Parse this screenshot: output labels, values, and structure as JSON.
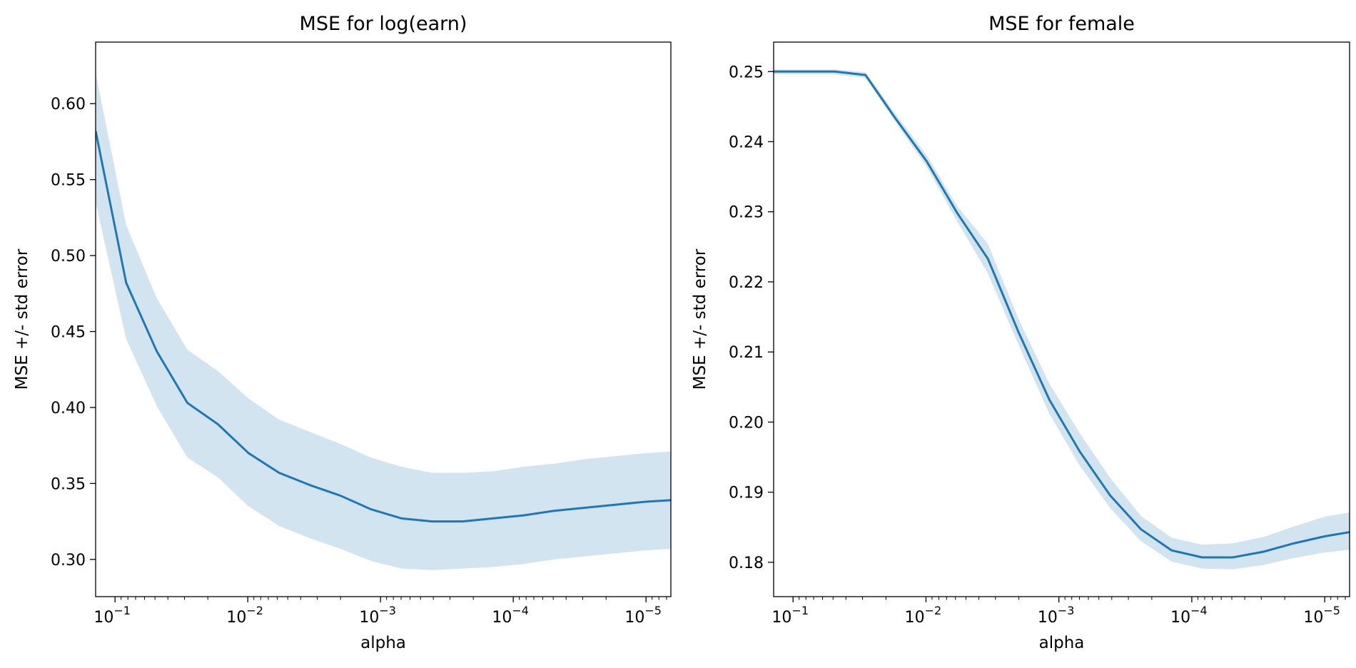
{
  "chart_data": [
    {
      "type": "line",
      "title": "MSE for log(earn)",
      "xlabel": "alpha",
      "ylabel": "MSE +/- std error",
      "x_scale": "log",
      "x_reversed": true,
      "xlim": [
        0.14,
        6.5e-06
      ],
      "ylim": [
        0.2755,
        0.6405
      ],
      "xticks": [
        {
          "value": 0.1,
          "base": "10",
          "exp": "−1"
        },
        {
          "value": 0.01,
          "base": "10",
          "exp": "−2"
        },
        {
          "value": 0.001,
          "base": "10",
          "exp": "−3"
        },
        {
          "value": 0.0001,
          "base": "10",
          "exp": "−4"
        },
        {
          "value": 1e-05,
          "base": "10",
          "exp": "−5"
        }
      ],
      "yticks": [
        {
          "value": 0.3,
          "label": "0.30"
        },
        {
          "value": 0.35,
          "label": "0.35"
        },
        {
          "value": 0.4,
          "label": "0.40"
        },
        {
          "value": 0.45,
          "label": "0.45"
        },
        {
          "value": 0.5,
          "label": "0.50"
        },
        {
          "value": 0.55,
          "label": "0.55"
        },
        {
          "value": 0.6,
          "label": "0.60"
        }
      ],
      "band_color": "#1f77b4",
      "line_color": "#1f77b4",
      "x": [
        0.14,
        0.0824,
        0.0485,
        0.0285,
        0.0168,
        0.00988,
        0.00581,
        0.00342,
        0.00201,
        0.00118,
        0.000697,
        0.00041,
        0.000241,
        0.000142,
        8.36e-05,
        4.92e-05,
        2.9e-05,
        1.71e-05,
        1e-05,
        6.5e-06
      ],
      "series": [
        {
          "mean": [
            0.582,
            0.482,
            0.437,
            0.403,
            0.389,
            0.37,
            0.357,
            0.349,
            0.342,
            0.333,
            0.327,
            0.325,
            0.325,
            0.327,
            0.329,
            0.332,
            0.334,
            0.336,
            0.338,
            0.339
          ],
          "lower": [
            0.535,
            0.445,
            0.401,
            0.367,
            0.354,
            0.335,
            0.322,
            0.314,
            0.307,
            0.299,
            0.294,
            0.293,
            0.294,
            0.295,
            0.297,
            0.3,
            0.302,
            0.304,
            0.306,
            0.307
          ],
          "upper": [
            0.62,
            0.52,
            0.472,
            0.438,
            0.424,
            0.406,
            0.392,
            0.384,
            0.376,
            0.367,
            0.361,
            0.357,
            0.357,
            0.358,
            0.361,
            0.363,
            0.366,
            0.368,
            0.37,
            0.371
          ]
        }
      ]
    },
    {
      "type": "line",
      "title": "MSE for female",
      "xlabel": "alpha",
      "ylabel": "MSE +/- std error",
      "x_scale": "log",
      "x_reversed": true,
      "xlim": [
        0.14,
        6.5e-06
      ],
      "ylim": [
        0.1751,
        0.2542
      ],
      "xticks": [
        {
          "value": 0.1,
          "base": "10",
          "exp": "−1"
        },
        {
          "value": 0.01,
          "base": "10",
          "exp": "−2"
        },
        {
          "value": 0.001,
          "base": "10",
          "exp": "−3"
        },
        {
          "value": 0.0001,
          "base": "10",
          "exp": "−4"
        },
        {
          "value": 1e-05,
          "base": "10",
          "exp": "−5"
        }
      ],
      "yticks": [
        {
          "value": 0.18,
          "label": "0.18"
        },
        {
          "value": 0.19,
          "label": "0.19"
        },
        {
          "value": 0.2,
          "label": "0.20"
        },
        {
          "value": 0.21,
          "label": "0.21"
        },
        {
          "value": 0.22,
          "label": "0.22"
        },
        {
          "value": 0.23,
          "label": "0.23"
        },
        {
          "value": 0.24,
          "label": "0.24"
        },
        {
          "value": 0.25,
          "label": "0.25"
        }
      ],
      "band_color": "#1f77b4",
      "line_color": "#1f77b4",
      "x": [
        0.14,
        0.0824,
        0.0485,
        0.0285,
        0.0168,
        0.00988,
        0.00581,
        0.00342,
        0.00201,
        0.00118,
        0.000697,
        0.00041,
        0.000241,
        0.000142,
        8.36e-05,
        4.92e-05,
        2.9e-05,
        1.71e-05,
        1e-05,
        6.5e-06
      ],
      "series": [
        {
          "mean": [
            0.25,
            0.25,
            0.25,
            0.2495,
            0.2432,
            0.2372,
            0.2298,
            0.2233,
            0.2128,
            0.2032,
            0.1958,
            0.1895,
            0.1847,
            0.1817,
            0.1807,
            0.1807,
            0.1815,
            0.1827,
            0.1837,
            0.1843
          ],
          "lower": [
            0.2496,
            0.2496,
            0.2496,
            0.2491,
            0.2427,
            0.2364,
            0.2286,
            0.2212,
            0.211,
            0.2012,
            0.1938,
            0.1877,
            0.183,
            0.1801,
            0.1791,
            0.179,
            0.1796,
            0.1806,
            0.1814,
            0.1818
          ],
          "upper": [
            0.2503,
            0.2503,
            0.2503,
            0.2499,
            0.2438,
            0.2381,
            0.2308,
            0.2254,
            0.2147,
            0.2055,
            0.1984,
            0.192,
            0.1866,
            0.1835,
            0.1825,
            0.1827,
            0.1836,
            0.1851,
            0.1865,
            0.1871
          ]
        }
      ]
    }
  ]
}
